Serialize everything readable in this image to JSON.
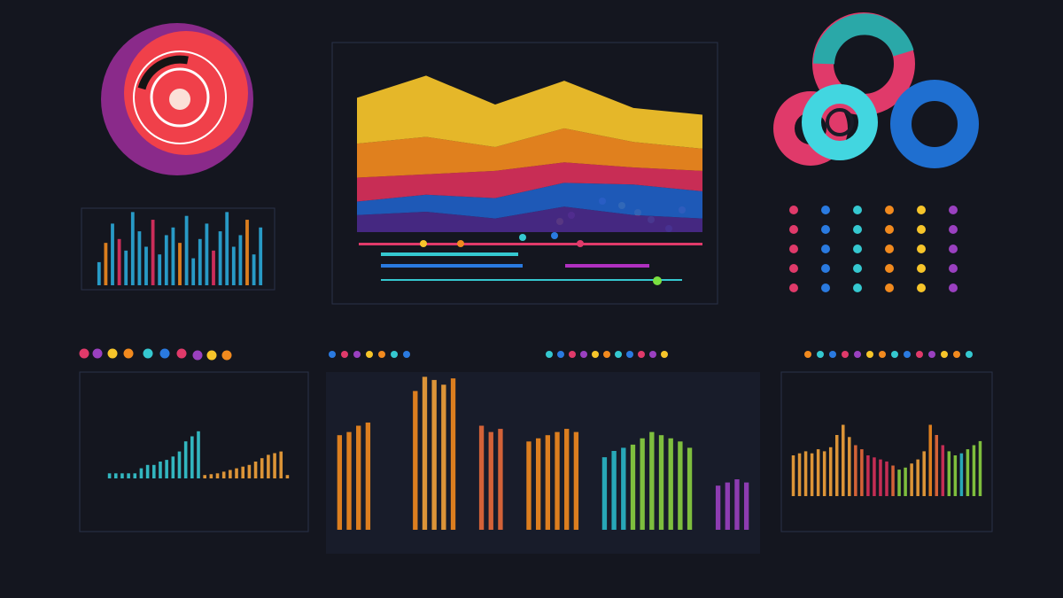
{
  "chart_data": [
    {
      "type": "area",
      "categories": [
        null,
        null,
        null,
        null,
        null,
        null
      ],
      "ylim": [
        0,
        100
      ],
      "series": [
        {
          "color": "#4a2a8a",
          "values": [
            10,
            12,
            8,
            15,
            10,
            8
          ]
        },
        {
          "color": "#1f5fc4",
          "values": [
            8,
            10,
            12,
            14,
            18,
            16
          ]
        },
        {
          "color": "#d8305a",
          "values": [
            14,
            12,
            16,
            12,
            10,
            12
          ]
        },
        {
          "color": "#f28a1e",
          "values": [
            20,
            22,
            14,
            20,
            15,
            13
          ]
        },
        {
          "color": "#f7c52a",
          "values": [
            27,
            36,
            25,
            28,
            20,
            20
          ]
        }
      ]
    },
    {
      "type": "bar",
      "ylim": [
        0,
        100
      ],
      "values": [
        30,
        55,
        80,
        60,
        45,
        95,
        70,
        50,
        85,
        40,
        65,
        75,
        55,
        90,
        35,
        60,
        80,
        45,
        70,
        95,
        50,
        65,
        85,
        40,
        75
      ],
      "colors": [
        "#2aa8d8",
        "#f28a1e",
        "#2aa8d8",
        "#e03060",
        "#2aa8d8",
        "#2aa8d8",
        "#2aa8d8",
        "#2aa8d8",
        "#e03060",
        "#2aa8d8",
        "#2aa8d8",
        "#2aa8d8",
        "#f28a1e",
        "#2aa8d8",
        "#2aa8d8",
        "#2aa8d8",
        "#2aa8d8",
        "#e03060",
        "#2aa8d8",
        "#2aa8d8",
        "#2aa8d8",
        "#2aa8d8",
        "#f28a1e",
        "#2aa8d8",
        "#2aa8d8"
      ]
    },
    {
      "type": "bar",
      "ylim": [
        0,
        100
      ],
      "values": [
        6,
        6,
        6,
        6,
        6,
        12,
        16,
        16,
        20,
        22,
        26,
        32,
        44,
        50,
        56,
        4,
        5,
        6,
        8,
        10,
        12,
        14,
        16,
        20,
        24,
        28,
        30,
        32,
        4
      ],
      "colors": [
        "#35c8d0",
        "#35c8d0",
        "#35c8d0",
        "#35c8d0",
        "#35c8d0",
        "#35c8d0",
        "#35c8d0",
        "#35c8d0",
        "#35c8d0",
        "#35c8d0",
        "#35c8d0",
        "#35c8d0",
        "#35c8d0",
        "#35c8d0",
        "#35c8d0",
        "#f2a23a",
        "#f2a23a",
        "#f2a23a",
        "#f2a23a",
        "#f2a23a",
        "#f2a23a",
        "#f2a23a",
        "#f2a23a",
        "#f2a23a",
        "#f2a23a",
        "#f2a23a",
        "#f2a23a",
        "#f2a23a",
        "#f2a23a"
      ]
    },
    {
      "type": "bar",
      "ylim": [
        0,
        100
      ],
      "values": [
        60,
        62,
        66,
        68,
        0,
        0,
        0,
        0,
        88,
        97,
        95,
        92,
        96,
        0,
        0,
        66,
        62,
        64,
        0,
        0,
        56,
        58,
        60,
        62,
        64,
        62,
        0,
        0,
        46,
        50,
        52,
        54,
        58,
        62,
        60,
        58,
        56,
        52,
        0,
        0,
        28,
        30,
        32,
        30
      ],
      "colors": [
        "#f28a1e",
        "#f28a1e",
        "#f28a1e",
        "#f28a1e",
        "#f28a1e",
        "#f28a1e",
        "#f28a1e",
        "#f28a1e",
        "#f28a1e",
        "#f2a23a",
        "#f2a23a",
        "#f2a23a",
        "#f28a1e",
        "#f28a1e",
        "#f28a1e",
        "#e86a3a",
        "#e86a3a",
        "#e86a3a",
        "#e86a3a",
        "#e86a3a",
        "#f28a1e",
        "#f28a1e",
        "#f28a1e",
        "#f28a1e",
        "#f28a1e",
        "#f28a1e",
        "#2ab8c8",
        "#2ab8c8",
        "#2ab8c8",
        "#2ab8c8",
        "#2ab8c8",
        "#8ad040",
        "#8ad040",
        "#8ad040",
        "#8ad040",
        "#8ad040",
        "#8ad040",
        "#8ad040",
        "#9a40c0",
        "#9a40c0",
        "#9a40c0",
        "#9a40c0",
        "#9a40c0",
        "#9a40c0"
      ]
    },
    {
      "type": "bar",
      "ylim": [
        0,
        100
      ],
      "values": [
        40,
        42,
        44,
        42,
        46,
        44,
        48,
        60,
        70,
        58,
        50,
        46,
        40,
        38,
        36,
        34,
        30,
        26,
        28,
        32,
        36,
        44,
        70,
        60,
        50,
        44,
        40,
        42,
        46,
        50,
        54
      ],
      "colors": [
        "#f2a23a",
        "#f2a23a",
        "#f2a23a",
        "#f2a23a",
        "#f2a23a",
        "#f2a23a",
        "#f2a23a",
        "#f2a23a",
        "#f2a23a",
        "#f2a23a",
        "#e86a3a",
        "#e86a3a",
        "#d8305a",
        "#d8305a",
        "#d8305a",
        "#d8305a",
        "#e86a3a",
        "#8ad040",
        "#8ad040",
        "#f2a23a",
        "#f2a23a",
        "#f2a23a",
        "#f28a1e",
        "#e86a3a",
        "#d8305a",
        "#8ad040",
        "#8ad040",
        "#2ab8c8",
        "#8ad040",
        "#8ad040",
        "#8ad040"
      ]
    }
  ]
}
